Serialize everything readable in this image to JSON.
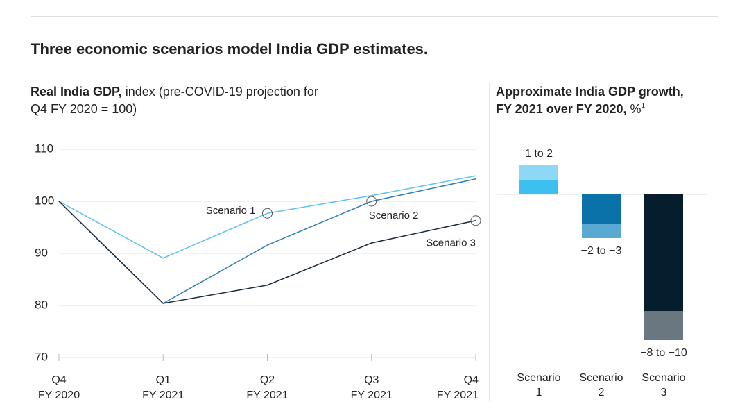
{
  "title": "Three economic scenarios model India GDP estimates.",
  "chart_data": [
    {
      "type": "line",
      "title": "Real India GDP,",
      "subtitle": [
        "index (pre-COVID-19 projection for",
        "Q4 FY 2020 = 100)"
      ],
      "categories": [
        [
          "Q4",
          "FY 2020"
        ],
        [
          "Q1",
          "FY 2021"
        ],
        [
          "Q2",
          "FY 2021"
        ],
        [
          "Q3",
          "FY 2021"
        ],
        [
          "Q4",
          "FY 2021"
        ]
      ],
      "series": [
        {
          "name": "Scenario 1",
          "color": "#5ec3ec",
          "values": [
            100,
            89.1,
            97.7,
            101.1,
            104.9
          ]
        },
        {
          "name": "Scenario 2",
          "color": "#2a7fb5",
          "values": [
            100,
            80.4,
            91.6,
            100,
            104.3
          ]
        },
        {
          "name": "Scenario 3",
          "color": "#1b2a3a",
          "values": [
            100,
            80.4,
            83.9,
            92,
            96.3
          ]
        }
      ],
      "ylim": [
        70,
        110
      ],
      "yticks": [
        70,
        80,
        90,
        100,
        110
      ],
      "grid": true
    },
    {
      "type": "range_bar",
      "title": [
        "Approximate India GDP growth,",
        "FY 2021 over FY 2020,"
      ],
      "unit": "%",
      "footnote": "1",
      "categories": [
        [
          "Scenario",
          "1"
        ],
        [
          "Scenario",
          "2"
        ],
        [
          "Scenario",
          "3"
        ]
      ],
      "ranges": [
        [
          1,
          2
        ],
        [
          -2,
          -3
        ],
        [
          -8,
          -10
        ]
      ],
      "value_labels": [
        "1 to 2",
        "−2 to −3",
        "−8 to −10"
      ],
      "colors": [
        [
          "#3dbff0",
          "#8fd8f5"
        ],
        [
          "#0a72a8",
          "#5aa9d3"
        ],
        [
          "#061d2e",
          "#6b7780"
        ]
      ],
      "ylim": [
        -11.5,
        3.5
      ]
    }
  ]
}
